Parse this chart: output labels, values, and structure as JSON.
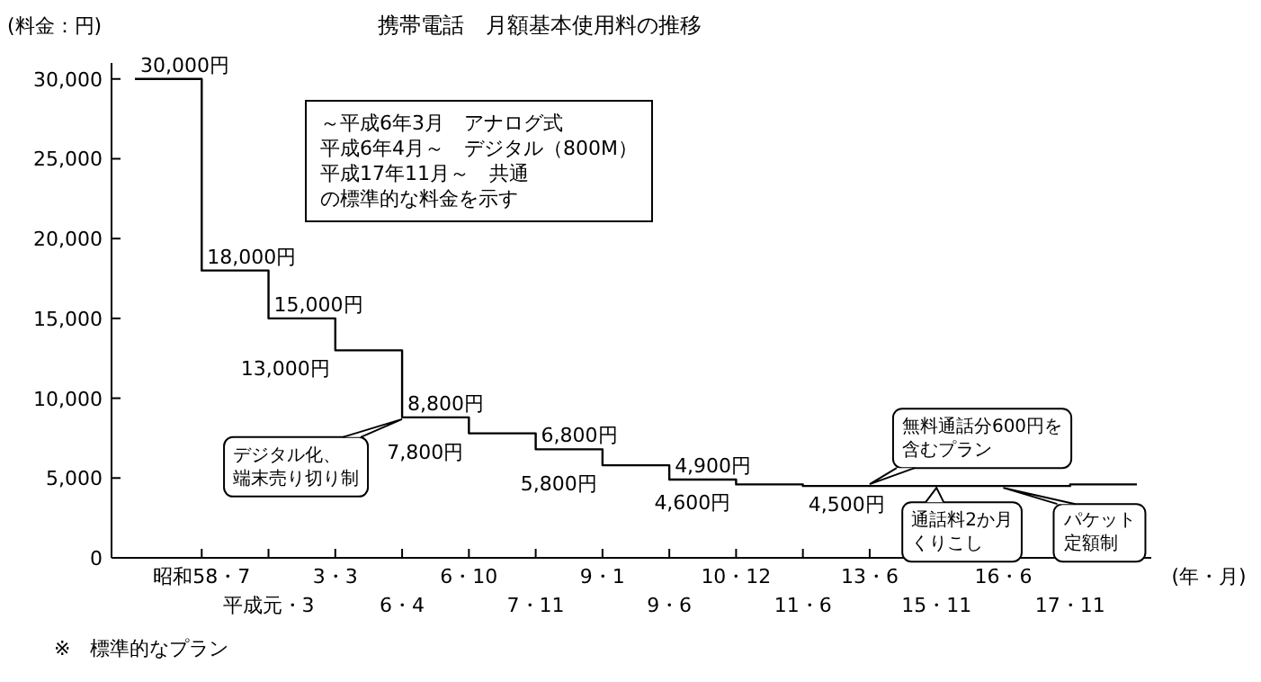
{
  "chart_data": {
    "type": "step",
    "title": "携帯電話　月額基本使用料の推移",
    "ylabel": "(料金：円)",
    "xlabel": "(年・月)",
    "categories": [
      null,
      "昭和58・7",
      "平成元・3",
      "3・3",
      "6・4",
      "6・10",
      "7・11",
      "9・1",
      "9・6",
      "10・12",
      "11・6",
      "13・6",
      "15・11",
      "16・6",
      "17・11",
      null
    ],
    "values": [
      30000,
      18000,
      15000,
      13000,
      8800,
      7800,
      6800,
      5800,
      4900,
      4600,
      4500,
      4500,
      4500,
      4500,
      4600,
      4600
    ],
    "value_labels": [
      "30,000円",
      "18,000円",
      "15,000円",
      "13,000円",
      "8,800円",
      "7,800円",
      "6,800円",
      "5,800円",
      "4,900円",
      "4,600円",
      "4,500円",
      null,
      null,
      null,
      null,
      null
    ],
    "color": "#000000",
    "ylim": [
      0,
      31000
    ],
    "yticks": [
      0,
      {
        "value": 5000,
        "label": "5,000"
      },
      {
        "value": 10000,
        "label": "10,000"
      },
      {
        "value": 15000,
        "label": "15,000"
      },
      {
        "value": 20000,
        "label": "20,000"
      },
      {
        "value": 25000,
        "label": "25,000"
      },
      {
        "value": 30000,
        "label": "30,000"
      }
    ],
    "annotations": [
      "～平成6年3月　アナログ式",
      "平成6年4月～　デジタル（800M）",
      "平成17年11月～　共通",
      "の標準的な料金を示す",
      {
        "text": "デジタル化、端末売り切り制",
        "x": "6・4",
        "y": 8800
      },
      {
        "text": "無料通話分600円を含むプラン",
        "x": "13・6",
        "y": 4500
      },
      {
        "text": "通話料2か月くりこし",
        "x": "15・11",
        "y": 4500
      },
      {
        "text": "パケット定額制",
        "x": "16・6",
        "y": 4500
      },
      "※　標準的なプラン"
    ]
  }
}
